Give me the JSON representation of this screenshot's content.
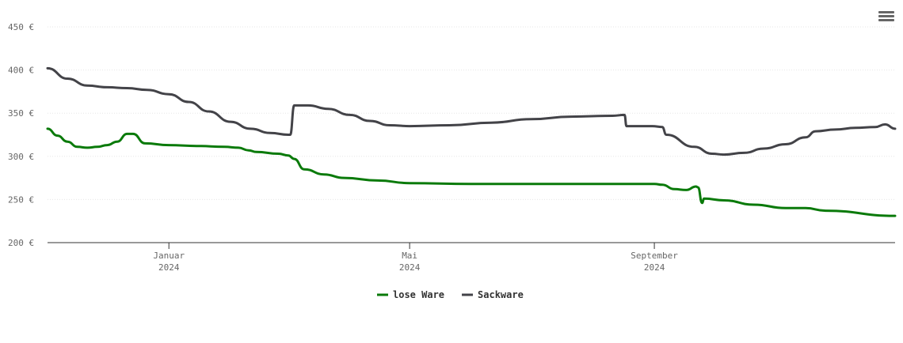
{
  "menu": {
    "icon": "hamburger-menu-icon"
  },
  "chart_data": {
    "type": "line",
    "ylim": [
      200,
      450
    ],
    "yticks": [
      {
        "value": 200,
        "label": "200 €"
      },
      {
        "value": 250,
        "label": "250 €"
      },
      {
        "value": 300,
        "label": "300 €"
      },
      {
        "value": 350,
        "label": "350 €"
      },
      {
        "value": 400,
        "label": "400 €"
      },
      {
        "value": 450,
        "label": "450 €"
      }
    ],
    "xlim": [
      "2023-11-01",
      "2024-12-31"
    ],
    "xticks": [
      {
        "date": "2024-01-01",
        "month": "Januar",
        "year": "2024"
      },
      {
        "date": "2024-05-01",
        "month": "Mai",
        "year": "2024"
      },
      {
        "date": "2024-09-01",
        "month": "September",
        "year": "2024"
      }
    ],
    "grid": true,
    "legend_position": "bottom-center",
    "series": [
      {
        "name": "lose Ware",
        "color": "#0a7a0a",
        "points": [
          [
            "2023-11-01",
            332
          ],
          [
            "2023-11-06",
            324
          ],
          [
            "2023-11-11",
            317
          ],
          [
            "2023-11-16",
            311
          ],
          [
            "2023-11-21",
            310
          ],
          [
            "2023-11-26",
            311
          ],
          [
            "2023-12-01",
            313
          ],
          [
            "2023-12-06",
            317
          ],
          [
            "2023-12-11",
            326
          ],
          [
            "2023-12-14",
            326
          ],
          [
            "2023-12-20",
            315
          ],
          [
            "2024-01-01",
            313
          ],
          [
            "2024-01-15",
            312
          ],
          [
            "2024-01-29",
            311
          ],
          [
            "2024-02-05",
            310
          ],
          [
            "2024-02-10",
            307
          ],
          [
            "2024-02-14",
            305
          ],
          [
            "2024-02-25",
            303
          ],
          [
            "2024-03-01",
            301
          ],
          [
            "2024-03-04",
            297
          ],
          [
            "2024-03-09",
            285
          ],
          [
            "2024-03-19",
            279
          ],
          [
            "2024-03-29",
            275
          ],
          [
            "2024-04-15",
            272
          ],
          [
            "2024-05-01",
            269
          ],
          [
            "2024-06-01",
            268
          ],
          [
            "2024-07-15",
            268
          ],
          [
            "2024-09-01",
            268
          ],
          [
            "2024-09-05",
            267
          ],
          [
            "2024-09-11",
            262
          ],
          [
            "2024-09-17",
            261
          ],
          [
            "2024-09-22",
            265
          ],
          [
            "2024-09-23",
            264
          ],
          [
            "2024-09-25",
            246
          ],
          [
            "2024-09-26",
            251
          ],
          [
            "2024-10-06",
            249
          ],
          [
            "2024-10-21",
            244
          ],
          [
            "2024-11-06",
            240
          ],
          [
            "2024-11-16",
            240
          ],
          [
            "2024-11-26",
            237
          ],
          [
            "2024-12-31",
            231
          ]
        ]
      },
      {
        "name": "Sackware",
        "color": "#434348",
        "points": [
          [
            "2023-11-01",
            402
          ],
          [
            "2023-11-11",
            390
          ],
          [
            "2023-11-21",
            382
          ],
          [
            "2023-12-01",
            380
          ],
          [
            "2023-12-11",
            379
          ],
          [
            "2023-12-21",
            377
          ],
          [
            "2024-01-01",
            372
          ],
          [
            "2024-01-11",
            363
          ],
          [
            "2024-01-21",
            352
          ],
          [
            "2024-02-01",
            340
          ],
          [
            "2024-02-11",
            332
          ],
          [
            "2024-02-21",
            327
          ],
          [
            "2024-03-01",
            325
          ],
          [
            "2024-03-02",
            325
          ],
          [
            "2024-03-04",
            359
          ],
          [
            "2024-03-11",
            359
          ],
          [
            "2024-03-21",
            355
          ],
          [
            "2024-04-01",
            348
          ],
          [
            "2024-04-11",
            341
          ],
          [
            "2024-04-21",
            336
          ],
          [
            "2024-05-01",
            335
          ],
          [
            "2024-05-21",
            336
          ],
          [
            "2024-06-11",
            339
          ],
          [
            "2024-07-01",
            343
          ],
          [
            "2024-07-21",
            346
          ],
          [
            "2024-08-11",
            347
          ],
          [
            "2024-08-17",
            348
          ],
          [
            "2024-08-18",
            335
          ],
          [
            "2024-08-31",
            335
          ],
          [
            "2024-09-05",
            334
          ],
          [
            "2024-09-07",
            325
          ],
          [
            "2024-09-21",
            311
          ],
          [
            "2024-09-30",
            303
          ],
          [
            "2024-10-06",
            302
          ],
          [
            "2024-10-16",
            304
          ],
          [
            "2024-10-26",
            309
          ],
          [
            "2024-11-06",
            314
          ],
          [
            "2024-11-16",
            322
          ],
          [
            "2024-11-21",
            329
          ],
          [
            "2024-12-01",
            331
          ],
          [
            "2024-12-11",
            333
          ],
          [
            "2024-12-21",
            334
          ],
          [
            "2024-12-26",
            337
          ],
          [
            "2024-12-31",
            332
          ]
        ]
      }
    ]
  }
}
